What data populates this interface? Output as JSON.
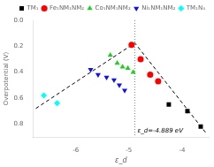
{
  "chart_data": {
    "type": "scatter",
    "xlabel": "ε_d",
    "ylabel": "Overpotential (V)",
    "xlim": [
      -6.8,
      -3.5
    ],
    "ylim": [
      0.9,
      0.0
    ],
    "xticks": [
      -6,
      -5,
      -4
    ],
    "yticks": [
      {
        "value": 0.0,
        "label": "0.0"
      },
      0.2,
      0.4,
      0.6,
      0.8
    ],
    "grid": false,
    "legend": "upper right",
    "series": [
      {
        "name": "TM₁",
        "color": "black",
        "marker": "square",
        "x": [
          -4.25,
          -3.9,
          -3.65
        ],
        "y": [
          0.65,
          0.7,
          0.82
        ]
      },
      {
        "name": "Fe₁NM₁NM₂",
        "color": "red",
        "marker": "circle",
        "x": [
          -4.95,
          -4.78,
          -4.6,
          -4.45
        ],
        "y": [
          0.19,
          0.3,
          0.42,
          0.47
        ]
      },
      {
        "name": "Co₁NM₁NM₂",
        "color": "#22cc22",
        "marker": "triangle_up",
        "x": [
          -5.35,
          -5.22,
          -5.12,
          -5.02,
          -4.92
        ],
        "y": [
          0.27,
          0.33,
          0.36,
          0.37,
          0.4
        ]
      },
      {
        "name": "Ni₁NM₁NM₂",
        "color": "#1010ee",
        "marker": "triangle_down",
        "x": [
          -5.72,
          -5.58,
          -5.42,
          -5.28,
          -5.18,
          -5.08
        ],
        "y": [
          0.38,
          0.42,
          0.44,
          0.46,
          0.5,
          0.54
        ]
      },
      {
        "name": "TM₁N₄",
        "color": "cyan",
        "marker": "diamond",
        "x": [
          -6.6,
          -6.35
        ],
        "y": [
          0.58,
          0.64
        ]
      },
      {
        "type": "line",
        "color": "black",
        "line_style": "dashed",
        "x": [
          -6.75,
          -4.889,
          -3.55
        ],
        "y": [
          0.68,
          0.175,
          0.87
        ]
      }
    ],
    "vlines": [
      {
        "x": -4.889,
        "color": "gray",
        "line_style": "dotted"
      }
    ],
    "annotations": [
      {
        "text": "ε_d=-4.889 eV",
        "x": -4.889
      }
    ]
  }
}
